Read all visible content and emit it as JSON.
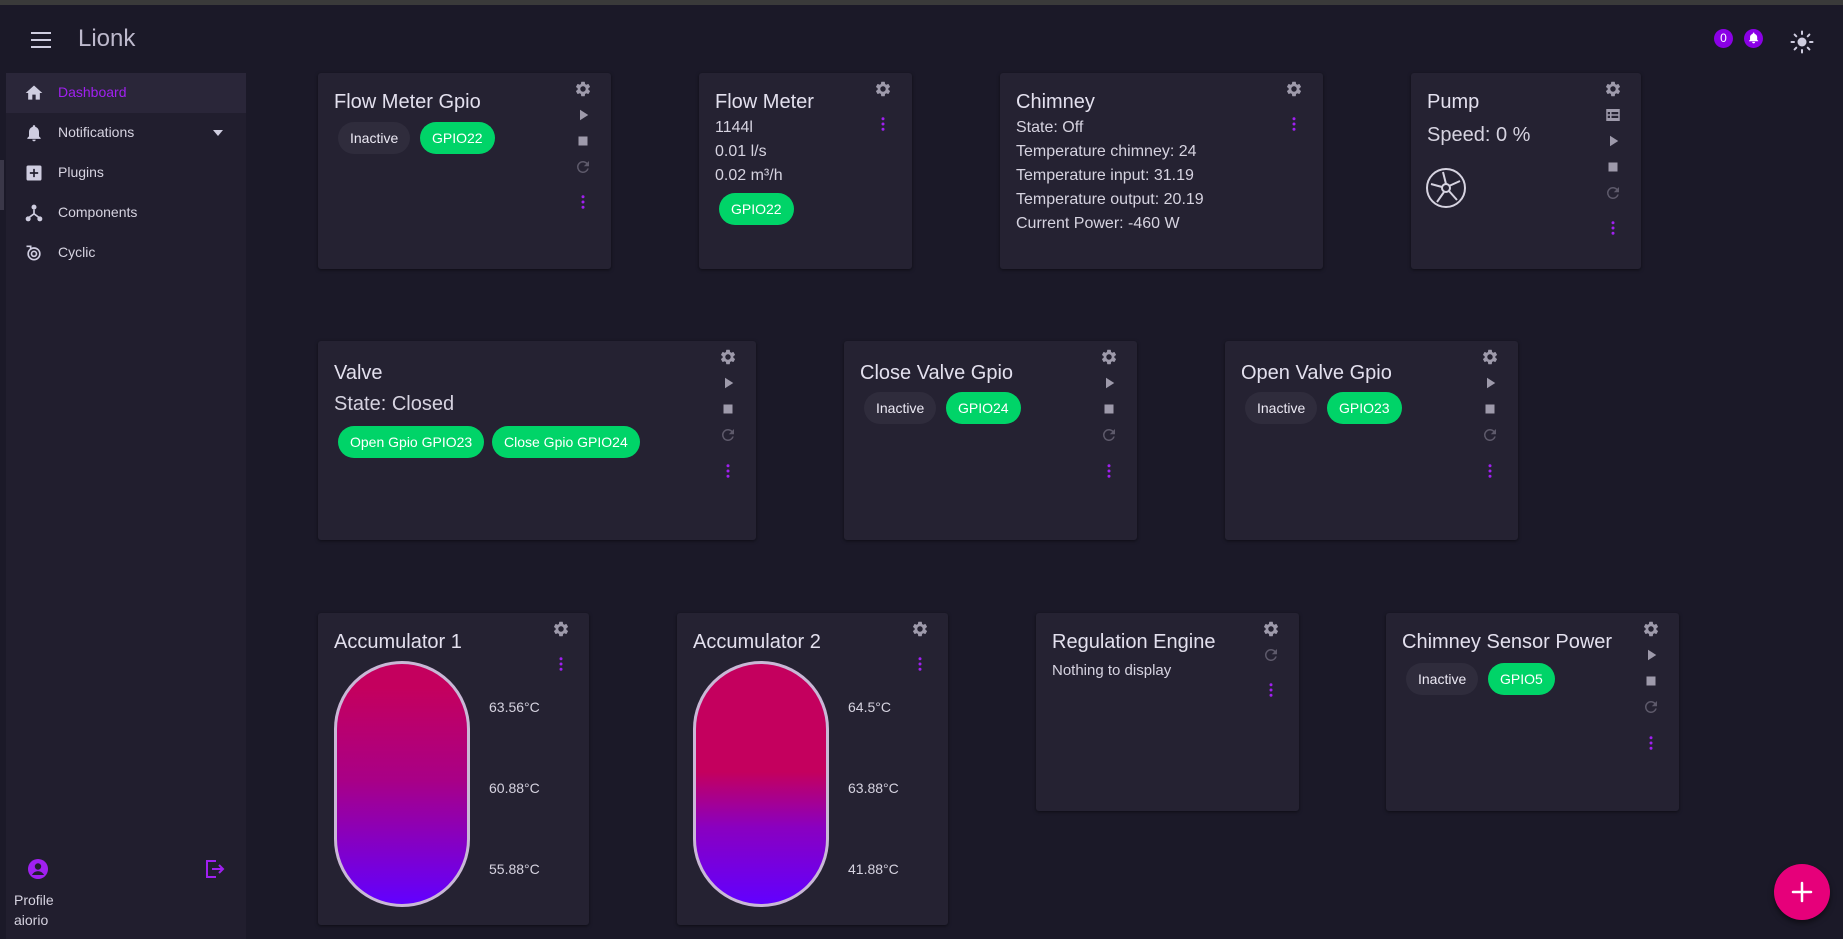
{
  "app": {
    "title": "Lionk",
    "badge_count": "0"
  },
  "sidebar": {
    "items": [
      {
        "label": "Dashboard",
        "icon": "home-icon",
        "active": true
      },
      {
        "label": "Notifications",
        "icon": "bell-icon"
      },
      {
        "label": "Plugins",
        "icon": "plus-box-icon"
      },
      {
        "label": "Components",
        "icon": "network-icon"
      },
      {
        "label": "Cyclic",
        "icon": "cycle-icon"
      }
    ],
    "profile_label": "Profile",
    "username": "aiorio"
  },
  "cards": {
    "flow_meter_gpio": {
      "title": "Flow Meter Gpio",
      "state": "Inactive",
      "gpio": "GPIO22"
    },
    "flow_meter": {
      "title": "Flow Meter",
      "total": "1144l",
      "rate": "0.01 l/s",
      "hourly": "0.02 m³/h",
      "gpio": "GPIO22"
    },
    "chimney": {
      "title": "Chimney",
      "state": "State: Off",
      "temp_chimney": "Temperature chimney: 24",
      "temp_input": "Temperature input: 31.19",
      "temp_output": "Temperature output: 20.19",
      "power": "Current Power: -460 W"
    },
    "pump": {
      "title": "Pump",
      "speed": "Speed: 0 %"
    },
    "valve": {
      "title": "Valve",
      "state": "State: Closed",
      "open_chip": "Open Gpio GPIO23",
      "close_chip": "Close Gpio GPIO24"
    },
    "close_valve_gpio": {
      "title": "Close Valve Gpio",
      "state": "Inactive",
      "gpio": "GPIO24"
    },
    "open_valve_gpio": {
      "title": "Open Valve Gpio",
      "state": "Inactive",
      "gpio": "GPIO23"
    },
    "accumulator_1": {
      "title": "Accumulator 1",
      "top": "63.56°C",
      "middle": "60.88°C",
      "bottom": "55.88°C"
    },
    "accumulator_2": {
      "title": "Accumulator 2",
      "top": "64.5°C",
      "middle": "63.88°C",
      "bottom": "41.88°C"
    },
    "regulation_engine": {
      "title": "Regulation Engine",
      "message": "Nothing to display"
    },
    "chimney_sensor_power": {
      "title": "Chimney Sensor Power",
      "state": "Inactive",
      "gpio": "GPIO5"
    }
  },
  "colors": {
    "accent": "#a020f0",
    "gpio_chip": "#00d468",
    "fab": "#e6007a",
    "tank_hot": "#c4005e",
    "tank_cold": "#6200ff"
  }
}
